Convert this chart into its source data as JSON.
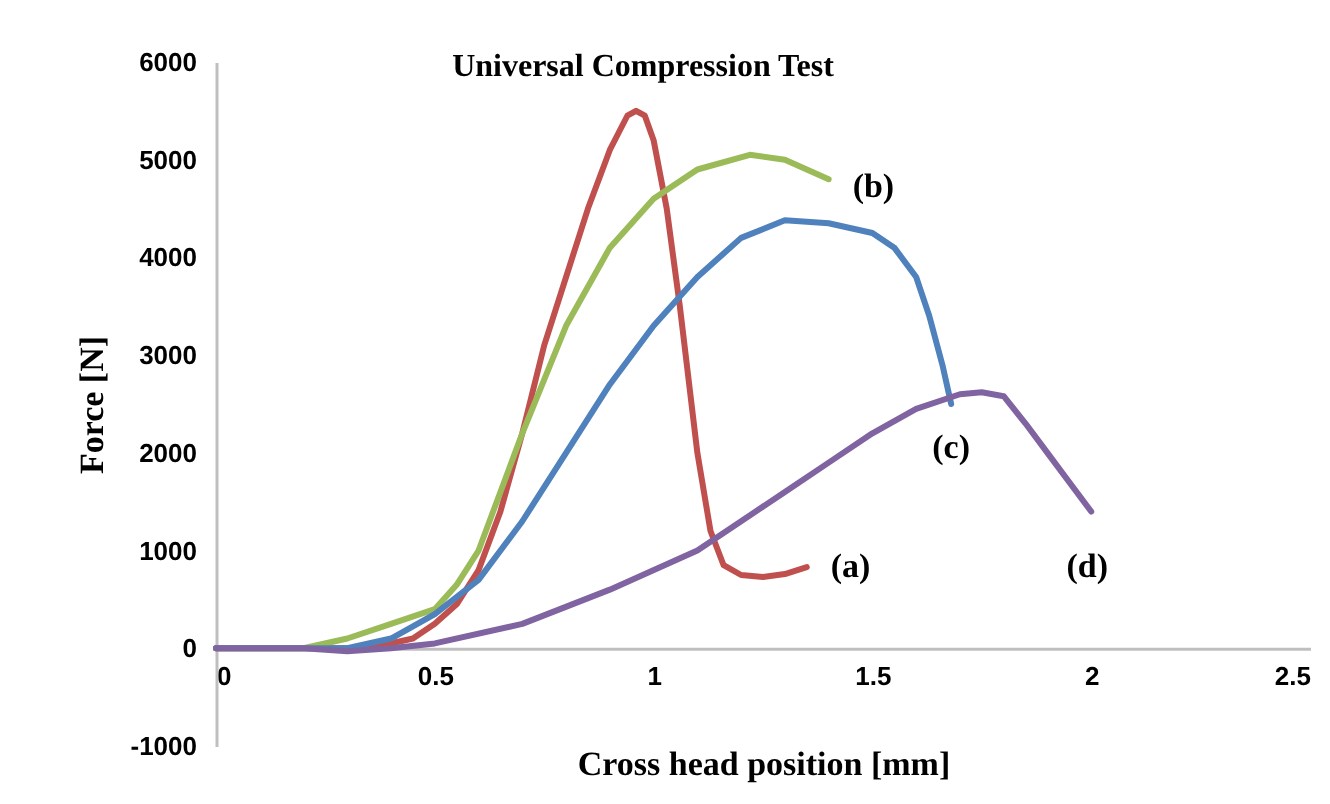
{
  "chart_data": {
    "type": "line",
    "title": "Universal Compression Test",
    "xlabel": "Cross head position [mm]",
    "ylabel": "Force [N]",
    "xlim": [
      0,
      2.5
    ],
    "xticks": [
      0,
      0.5,
      1,
      1.5,
      2,
      2.5
    ],
    "ylim": [
      -1000,
      6000
    ],
    "yticks": [
      -1000,
      0,
      1000,
      2000,
      3000,
      4000,
      5000,
      6000
    ],
    "grid": false,
    "legend": false,
    "marker": "none",
    "line_style": "solid",
    "series": [
      {
        "color": "#c0504d",
        "x": [
          0,
          0.2,
          0.35,
          0.45,
          0.5,
          0.55,
          0.6,
          0.65,
          0.7,
          0.75,
          0.8,
          0.85,
          0.9,
          0.94,
          0.96,
          0.98,
          1.0,
          1.03,
          1.06,
          1.1,
          1.13,
          1.16,
          1.2,
          1.25,
          1.3,
          1.35
        ],
        "values": [
          0,
          0,
          0,
          100,
          250,
          450,
          800,
          1400,
          2200,
          3100,
          3800,
          4500,
          5100,
          5450,
          5500,
          5450,
          5200,
          4500,
          3500,
          2000,
          1200,
          850,
          750,
          730,
          760,
          830
        ]
      },
      {
        "color": "#9bbb59",
        "x": [
          0,
          0.2,
          0.3,
          0.4,
          0.5,
          0.55,
          0.6,
          0.65,
          0.7,
          0.8,
          0.9,
          1.0,
          1.1,
          1.22,
          1.3,
          1.35,
          1.4
        ],
        "values": [
          0,
          0,
          100,
          250,
          400,
          650,
          1000,
          1600,
          2200,
          3300,
          4100,
          4600,
          4900,
          5050,
          5000,
          4900,
          4800
        ]
      },
      {
        "color": "#4f81bd",
        "x": [
          0,
          0.3,
          0.4,
          0.5,
          0.6,
          0.7,
          0.8,
          0.9,
          1.0,
          1.1,
          1.2,
          1.3,
          1.4,
          1.5,
          1.55,
          1.6,
          1.63,
          1.66,
          1.68
        ],
        "values": [
          0,
          0,
          100,
          350,
          700,
          1300,
          2000,
          2700,
          3300,
          3800,
          4200,
          4380,
          4350,
          4250,
          4100,
          3800,
          3400,
          2900,
          2500
        ]
      },
      {
        "color": "#8064a2",
        "x": [
          0,
          0.2,
          0.3,
          0.4,
          0.5,
          0.7,
          0.9,
          1.1,
          1.2,
          1.3,
          1.4,
          1.5,
          1.6,
          1.7,
          1.75,
          1.8,
          1.85,
          1.9,
          1.95,
          2.0
        ],
        "values": [
          0,
          0,
          -30,
          0,
          50,
          250,
          600,
          1000,
          1300,
          1600,
          1900,
          2200,
          2450,
          2600,
          2620,
          2580,
          2300,
          2000,
          1700,
          1400
        ]
      }
    ],
    "annotations": [
      "(a)",
      "(b)",
      "(c)",
      "(d)"
    ]
  }
}
